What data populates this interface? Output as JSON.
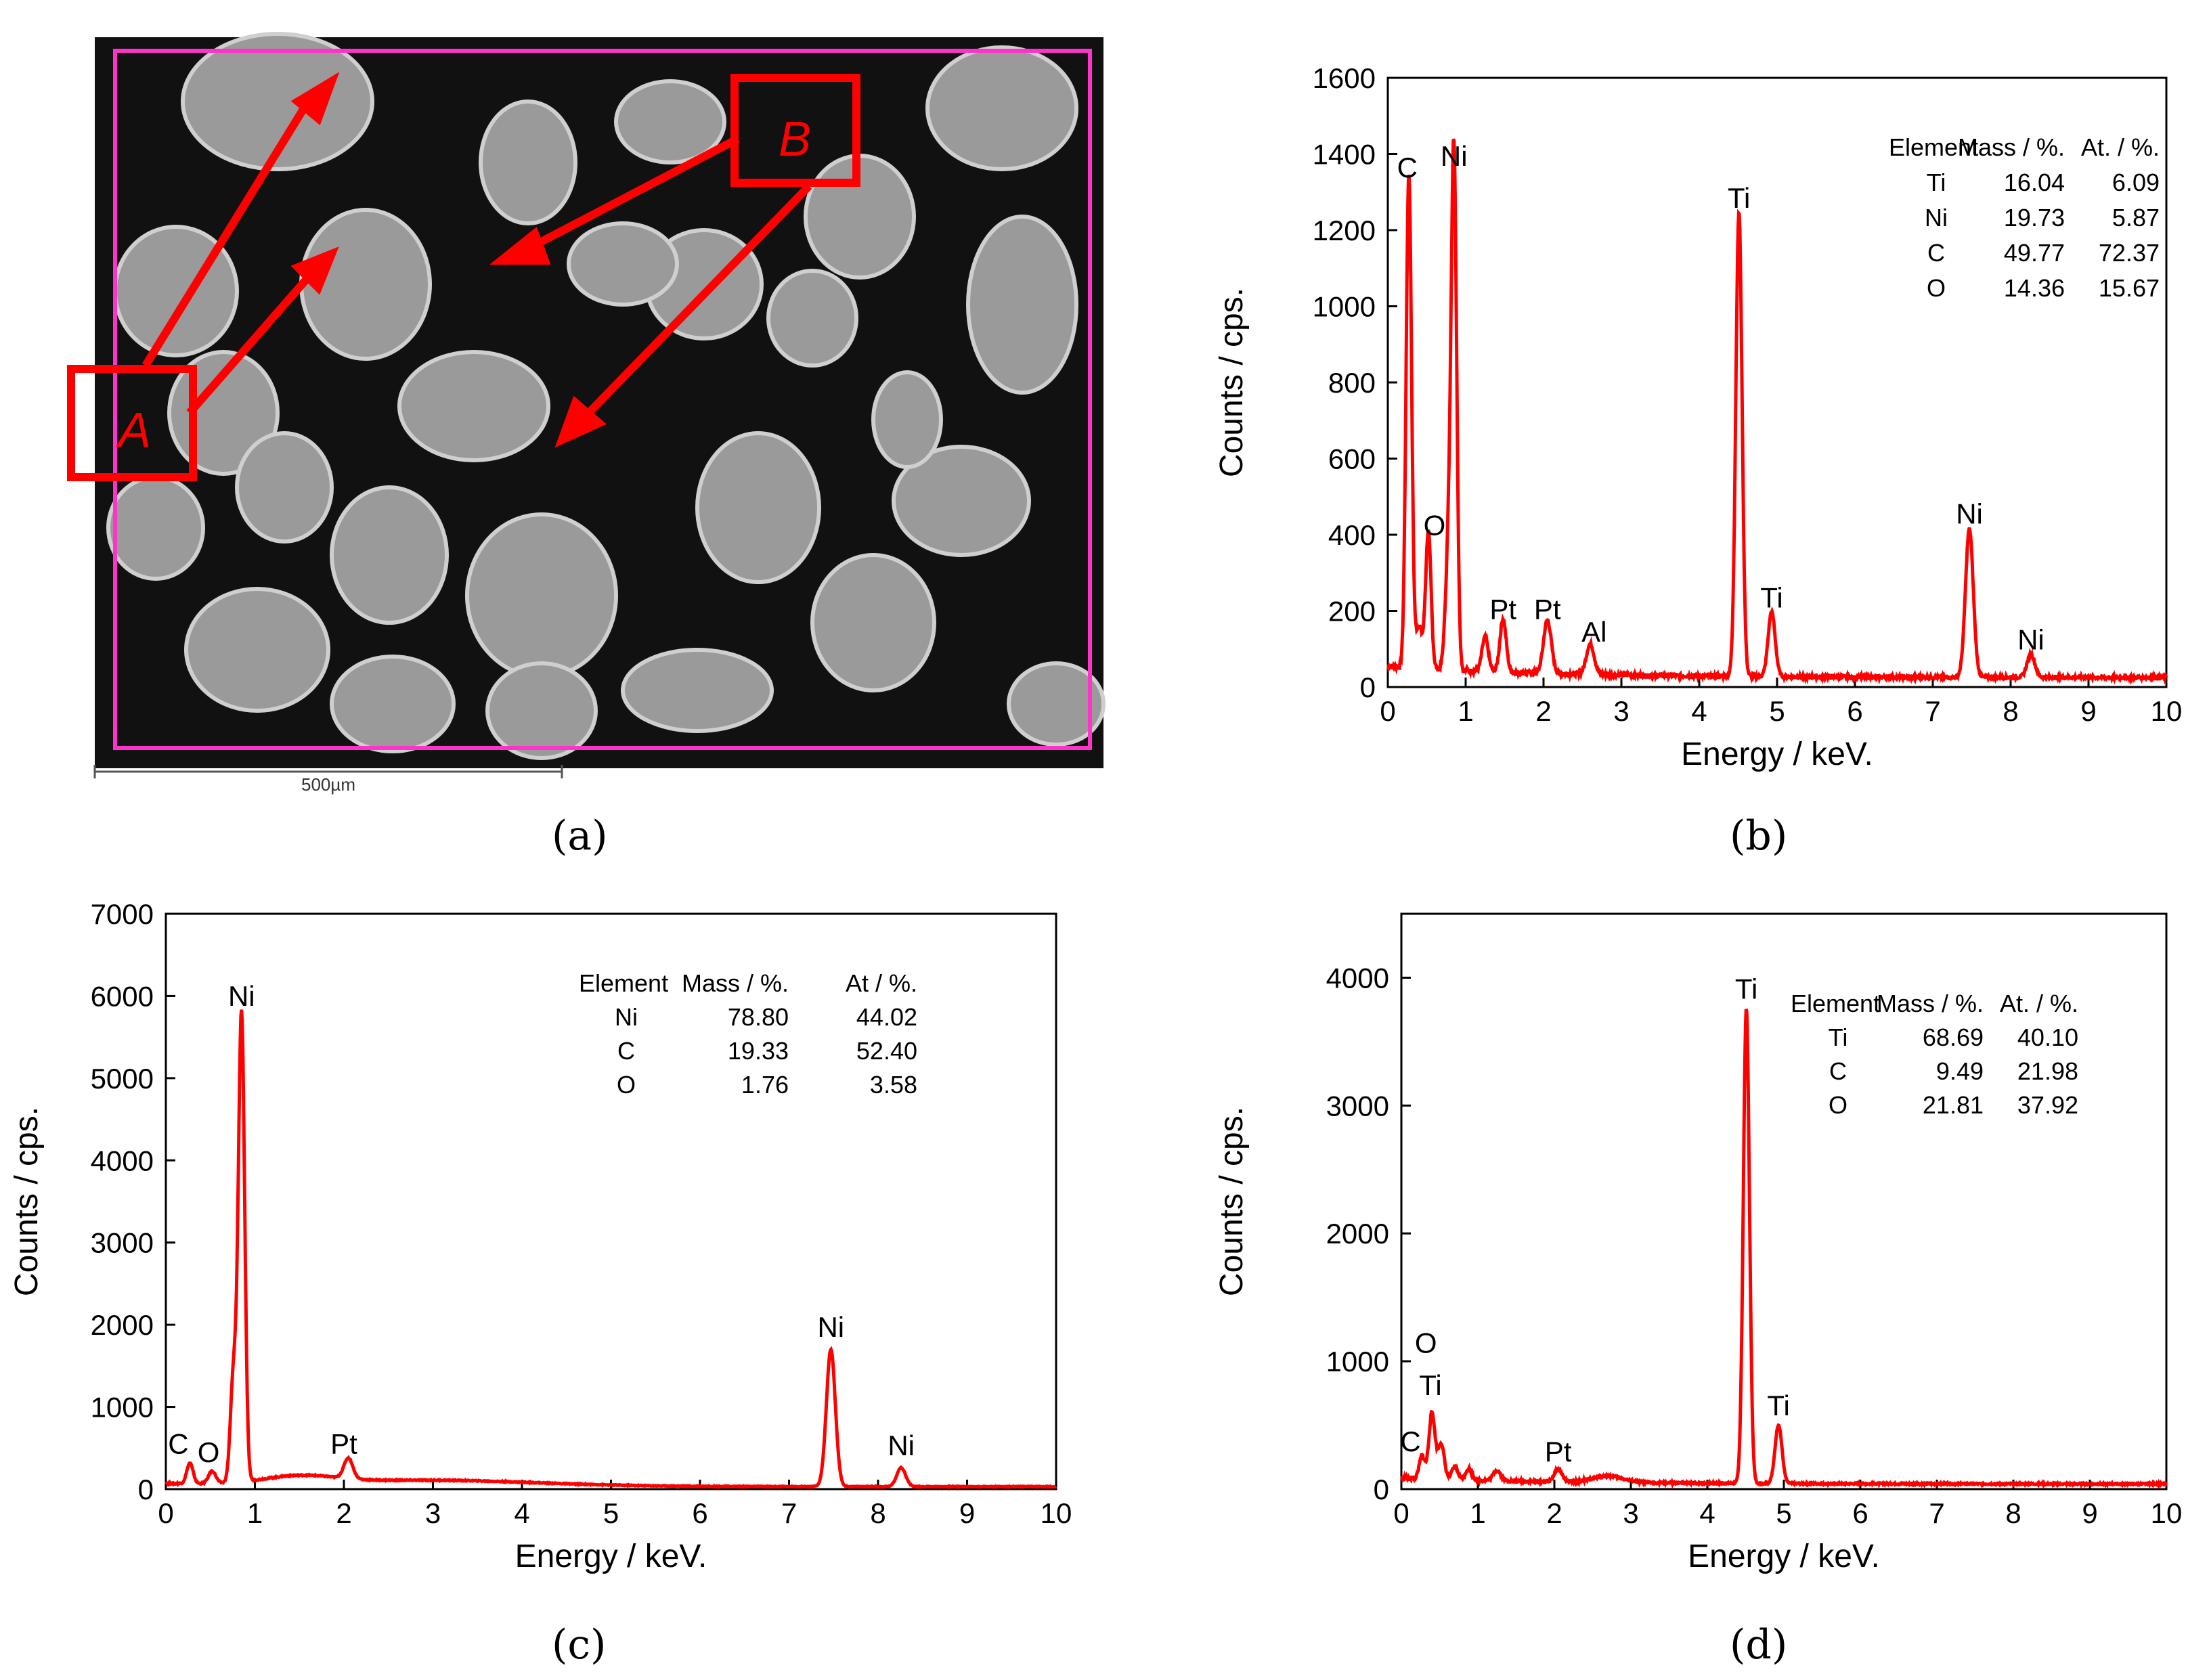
{
  "figure": {
    "panel_labels": [
      "(a)",
      "(b)",
      "(c)",
      "(d)"
    ],
    "sem": {
      "scale_bar": "500µm",
      "region_labels": [
        "A",
        "B"
      ],
      "colors": {
        "frame": "#ff33cc",
        "annotation": "#ff0000"
      }
    }
  },
  "chart_data": [
    {
      "id": "b",
      "type": "line",
      "xlabel": "Energy / keV.",
      "ylabel": "Counts / cps.",
      "xlim": [
        0,
        10
      ],
      "ylim": [
        0,
        1600
      ],
      "xticks": [
        0,
        1,
        2,
        3,
        4,
        5,
        6,
        7,
        8,
        9,
        10
      ],
      "yticks": [
        0,
        200,
        400,
        600,
        800,
        1000,
        1200,
        1400,
        1600
      ],
      "color": "#ff0000",
      "baseline": 25,
      "peaks": [
        {
          "x": 0.27,
          "y": 1300,
          "w": 0.035
        },
        {
          "x": 0.4,
          "y": 110,
          "w": 0.04
        },
        {
          "x": 0.52,
          "y": 360,
          "w": 0.035
        },
        {
          "x": 0.78,
          "y": 300,
          "w": 0.04
        },
        {
          "x": 0.85,
          "y": 1330,
          "w": 0.035
        },
        {
          "x": 1.25,
          "y": 90,
          "w": 0.04
        },
        {
          "x": 1.48,
          "y": 140,
          "w": 0.04
        },
        {
          "x": 2.05,
          "y": 140,
          "w": 0.05
        },
        {
          "x": 2.6,
          "y": 80,
          "w": 0.05
        },
        {
          "x": 4.51,
          "y": 1220,
          "w": 0.04
        },
        {
          "x": 4.93,
          "y": 170,
          "w": 0.045
        },
        {
          "x": 7.47,
          "y": 390,
          "w": 0.05
        },
        {
          "x": 8.26,
          "y": 60,
          "w": 0.05
        }
      ],
      "peak_labels": [
        {
          "text": "C",
          "x": 0.25,
          "y": 1300
        },
        {
          "text": "Ni",
          "x": 0.85,
          "y": 1330
        },
        {
          "text": "O",
          "x": 0.6,
          "y": 360
        },
        {
          "text": "Pt",
          "x": 1.48,
          "y": 140
        },
        {
          "text": "Pt",
          "x": 2.05,
          "y": 140
        },
        {
          "text": "Al",
          "x": 2.65,
          "y": 80
        },
        {
          "text": "Ti",
          "x": 4.51,
          "y": 1220
        },
        {
          "text": "Ti",
          "x": 4.93,
          "y": 170
        },
        {
          "text": "Ni",
          "x": 7.47,
          "y": 390
        },
        {
          "text": "Ni",
          "x": 8.26,
          "y": 60
        }
      ],
      "table": {
        "header": [
          "Element",
          "Mass / %.",
          "At. / %."
        ],
        "rows": [
          [
            "Ti",
            "16.04",
            "6.09"
          ],
          [
            "Ni",
            "19.73",
            "5.87"
          ],
          [
            "C",
            "49.77",
            "72.37"
          ],
          [
            "O",
            "14.36",
            "15.67"
          ]
        ]
      }
    },
    {
      "id": "c",
      "type": "line",
      "xlabel": "Energy / keV.",
      "ylabel": "Counts / cps.",
      "xlim": [
        0,
        10
      ],
      "ylim": [
        0,
        7000
      ],
      "xticks": [
        0,
        1,
        2,
        3,
        4,
        5,
        6,
        7,
        8,
        9,
        10
      ],
      "yticks": [
        0,
        1000,
        2000,
        3000,
        4000,
        5000,
        6000,
        7000
      ],
      "color": "#ff0000",
      "baseline": 30,
      "peaks": [
        {
          "x": 0.27,
          "y": 250,
          "w": 0.035
        },
        {
          "x": 0.52,
          "y": 150,
          "w": 0.04
        },
        {
          "x": 0.76,
          "y": 1300,
          "w": 0.035
        },
        {
          "x": 0.85,
          "y": 5700,
          "w": 0.035
        },
        {
          "x": 1.5,
          "y": 90,
          "w": 0.4
        },
        {
          "x": 2.05,
          "y": 250,
          "w": 0.05
        },
        {
          "x": 3.0,
          "y": 70,
          "w": 1.2
        },
        {
          "x": 7.47,
          "y": 1670,
          "w": 0.05
        },
        {
          "x": 8.26,
          "y": 230,
          "w": 0.05
        }
      ],
      "peak_labels": [
        {
          "text": "C",
          "x": 0.14,
          "y": 250
        },
        {
          "text": "O",
          "x": 0.48,
          "y": 150
        },
        {
          "text": "Ni",
          "x": 0.85,
          "y": 5700
        },
        {
          "text": "Pt",
          "x": 2.0,
          "y": 250
        },
        {
          "text": "Ni",
          "x": 7.47,
          "y": 1670
        },
        {
          "text": "Ni",
          "x": 8.26,
          "y": 230
        }
      ],
      "table": {
        "header": [
          "Element",
          "Mass / %.",
          "At / %."
        ],
        "rows": [
          [
            "Ni",
            "78.80",
            "44.02"
          ],
          [
            "C",
            "19.33",
            "52.40"
          ],
          [
            "O",
            "1.76",
            "3.58"
          ]
        ]
      }
    },
    {
      "id": "d",
      "type": "line",
      "xlabel": "Energy / keV.",
      "ylabel": "Counts / cps.",
      "xlim": [
        0,
        10
      ],
      "ylim": [
        0,
        4500
      ],
      "xticks": [
        0,
        1,
        2,
        3,
        4,
        5,
        6,
        7,
        8,
        9,
        10
      ],
      "yticks": [
        0,
        1000,
        2000,
        3000,
        4000
      ],
      "color": "#ff0000",
      "baseline": 40,
      "peaks": [
        {
          "x": 0.27,
          "y": 180,
          "w": 0.035
        },
        {
          "x": 0.4,
          "y": 520,
          "w": 0.04
        },
        {
          "x": 0.52,
          "y": 280,
          "w": 0.04
        },
        {
          "x": 0.7,
          "y": 100,
          "w": 0.04
        },
        {
          "x": 0.88,
          "y": 90,
          "w": 0.04
        },
        {
          "x": 1.25,
          "y": 80,
          "w": 0.05
        },
        {
          "x": 2.05,
          "y": 100,
          "w": 0.05
        },
        {
          "x": 2.7,
          "y": 50,
          "w": 0.2
        },
        {
          "x": 4.51,
          "y": 3720,
          "w": 0.04
        },
        {
          "x": 4.93,
          "y": 460,
          "w": 0.045
        }
      ],
      "peak_labels": [
        {
          "text": "C",
          "x": 0.12,
          "y": 180
        },
        {
          "text": "O",
          "x": 0.32,
          "y": 950
        },
        {
          "text": "Ti",
          "x": 0.38,
          "y": 620
        },
        {
          "text": "Pt",
          "x": 2.05,
          "y": 100
        },
        {
          "text": "Ti",
          "x": 4.51,
          "y": 3720
        },
        {
          "text": "Ti",
          "x": 4.93,
          "y": 460
        }
      ],
      "table": {
        "header": [
          "Element",
          "Mass / %.",
          "At. / %."
        ],
        "rows": [
          [
            "Ti",
            "68.69",
            "40.10"
          ],
          [
            "C",
            "9.49",
            "21.98"
          ],
          [
            "O",
            "21.81",
            "37.92"
          ]
        ]
      }
    }
  ]
}
